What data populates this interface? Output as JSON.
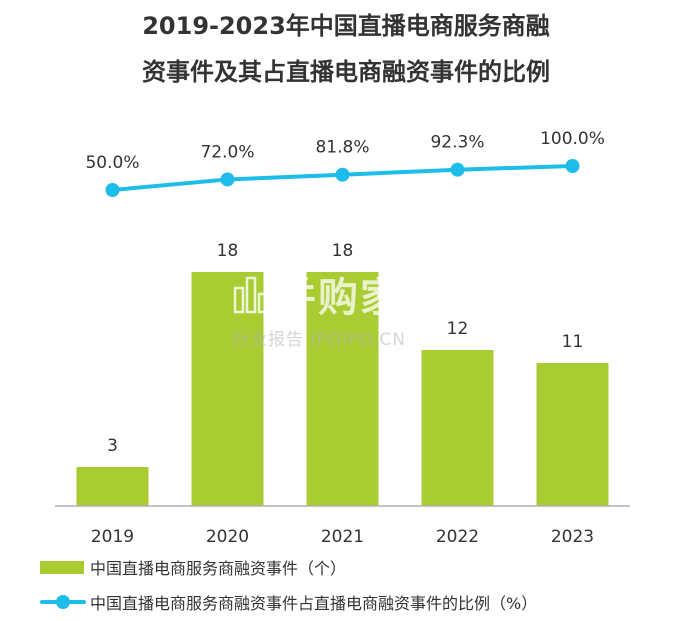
{
  "title_line1": "2019-2023年中国直播电商服务商融",
  "title_line2": "资事件及其占直播电商融资事件的比例",
  "colors": {
    "bar": "#a9cc33",
    "line": "#1ebce9",
    "text": "#333333",
    "axis": "#b0b0b0"
  },
  "watermark": {
    "main": "并购家",
    "sub": "行业报告 IPOIPO.CN",
    "icon": "building-logo-icon"
  },
  "chart_data": {
    "type": "bar",
    "categories": [
      "2019",
      "2020",
      "2021",
      "2022",
      "2023"
    ],
    "series": [
      {
        "name": "中国直播电商服务商融资事件（个）",
        "type": "bar",
        "values": [
          3,
          18,
          18,
          12,
          11
        ],
        "labels": [
          "3",
          "18",
          "18",
          "12",
          "11"
        ]
      },
      {
        "name": "中国直播电商服务商融资事件占直播电商融资事件的比例（%）",
        "type": "line",
        "values": [
          50.0,
          72.0,
          81.8,
          92.3,
          100.0
        ],
        "labels": [
          "50.0%",
          "72.0%",
          "81.8%",
          "92.3%",
          "100.0%"
        ]
      }
    ],
    "bar_ylim": [
      0,
      24
    ],
    "line_ylim": [
      0,
      100
    ],
    "grid": false,
    "legend_position": "bottom-left"
  }
}
